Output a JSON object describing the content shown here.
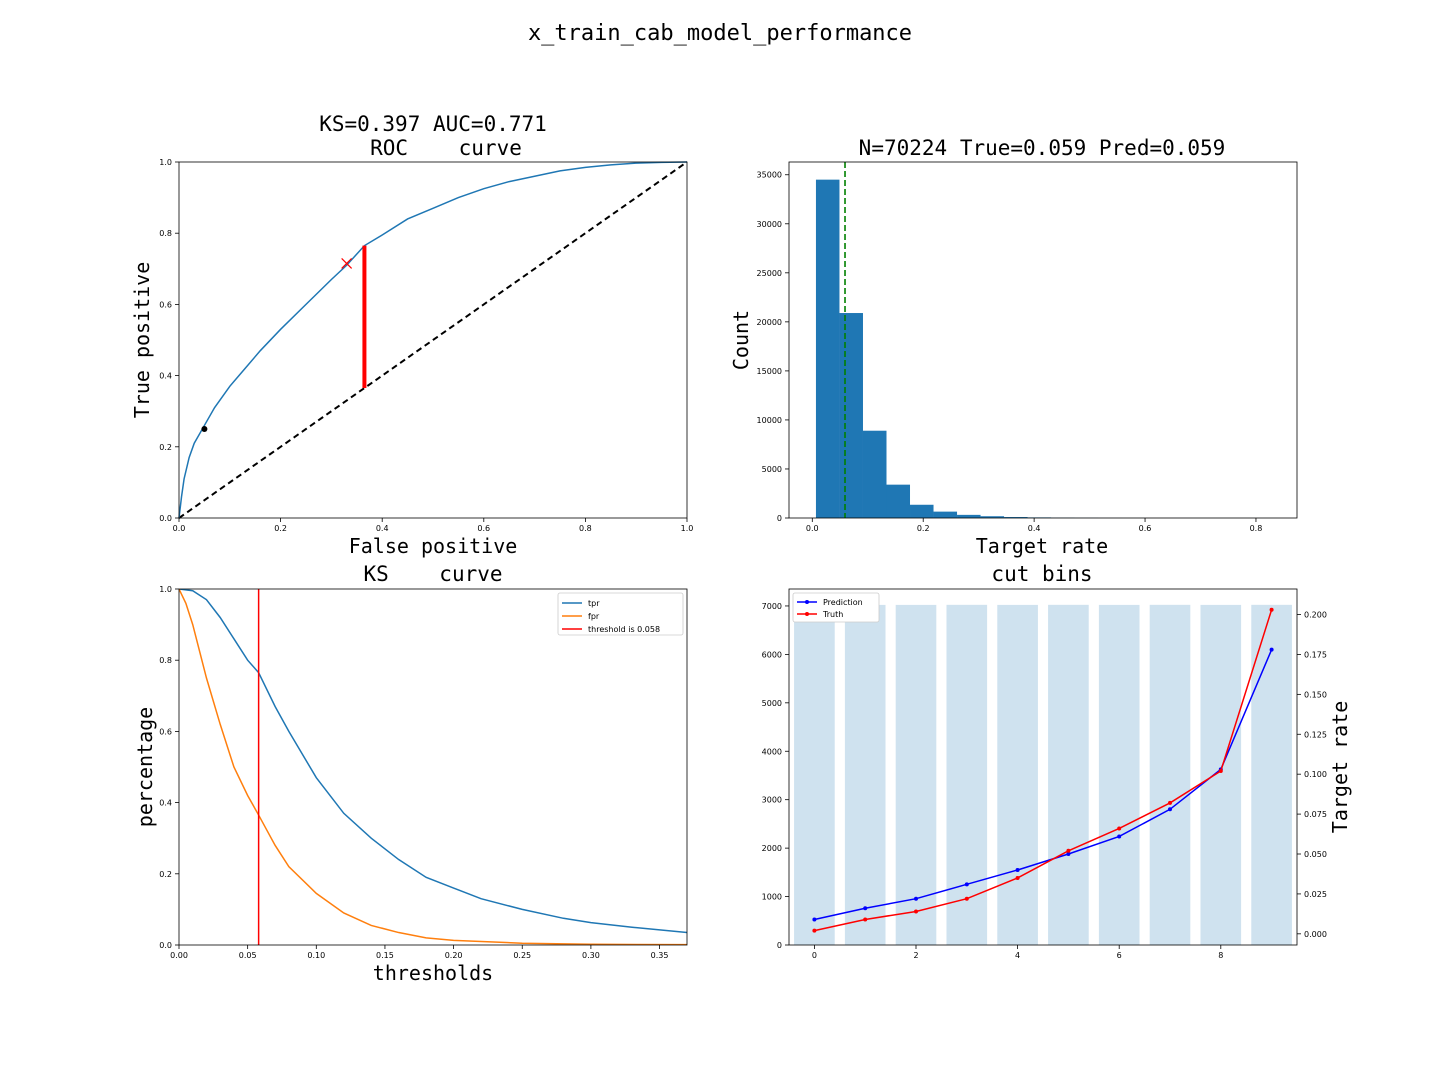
{
  "suptitle": "x_train_cab_model_performance",
  "chart_data": [
    {
      "type": "line",
      "id": "roc",
      "title_lines": [
        "KS=0.397 AUC=0.771",
        "ROC    curve"
      ],
      "xlabel": "False positive",
      "ylabel": "True positive",
      "xlim": [
        0,
        1
      ],
      "ylim": [
        0,
        1
      ],
      "xticks": [
        0,
        0.2,
        0.4,
        0.6,
        0.8,
        1.0
      ],
      "xtick_labels": [
        "0.0",
        "0.2",
        "0.4",
        "0.6",
        "0.8",
        "1.0"
      ],
      "yticks": [
        0,
        0.2,
        0.4,
        0.6,
        0.8,
        1.0
      ],
      "ytick_labels": [
        "0.0",
        "0.2",
        "0.4",
        "0.6",
        "0.8",
        "1.0"
      ],
      "series": [
        {
          "color": "#1f77b4",
          "x": [
            0,
            0.005,
            0.01,
            0.02,
            0.03,
            0.05,
            0.07,
            0.1,
            0.13,
            0.16,
            0.2,
            0.25,
            0.3,
            0.33,
            0.365,
            0.4,
            0.45,
            0.5,
            0.55,
            0.6,
            0.65,
            0.7,
            0.75,
            0.8,
            0.85,
            0.9,
            0.95,
            1.0
          ],
          "y": [
            0,
            0.06,
            0.11,
            0.17,
            0.21,
            0.26,
            0.31,
            0.37,
            0.42,
            0.47,
            0.53,
            0.6,
            0.67,
            0.71,
            0.765,
            0.795,
            0.84,
            0.87,
            0.9,
            0.925,
            0.945,
            0.96,
            0.975,
            0.985,
            0.992,
            0.997,
            0.999,
            1.0
          ]
        },
        {
          "color": "#000000",
          "dash": true,
          "x": [
            0,
            1
          ],
          "y": [
            0,
            1
          ]
        }
      ],
      "ks_segment": {
        "x": 0.365,
        "y_low": 0.365,
        "y_high": 0.765,
        "color": "#ff0000"
      },
      "cross_marker": {
        "x": 0.33,
        "y": 0.715,
        "color": "#ff0000"
      },
      "dot_marker": {
        "x": 0.05,
        "y": 0.25,
        "color": "#000000"
      }
    },
    {
      "type": "bar",
      "id": "hist",
      "title": "N=70224 True=0.059 Pred=0.059",
      "xlabel": "Target rate",
      "ylabel": "Count",
      "xlim": [
        -0.042,
        0.874
      ],
      "ylim": [
        0,
        36300
      ],
      "xticks": [
        0,
        0.2,
        0.4,
        0.6,
        0.8
      ],
      "xtick_labels": [
        "0.0",
        "0.2",
        "0.4",
        "0.6",
        "0.8"
      ],
      "yticks": [
        0,
        5000,
        10000,
        15000,
        20000,
        25000,
        30000,
        35000
      ],
      "ytick_labels": [
        "0",
        "5000",
        "10000",
        "15000",
        "20000",
        "25000",
        "30000",
        "35000"
      ],
      "bin_edges": [
        0.0066,
        0.049,
        0.0914,
        0.1338,
        0.1762,
        0.2186,
        0.261,
        0.3034,
        0.3458,
        0.3882,
        0.4306,
        0.473,
        0.5154,
        0.5578,
        0.6002,
        0.6426,
        0.685,
        0.7274,
        0.7698,
        0.8122,
        0.8402
      ],
      "counts": [
        34500,
        20900,
        8900,
        3400,
        1350,
        650,
        320,
        180,
        100,
        60,
        30,
        15,
        8,
        5,
        3,
        2,
        1,
        1,
        1,
        1
      ],
      "color": "#1f77b4",
      "vline": {
        "x": 0.059,
        "color": "#008000",
        "dash": true
      }
    },
    {
      "type": "line",
      "id": "ks",
      "title_lines": [
        "KS    curve"
      ],
      "xlabel": "thresholds",
      "ylabel": "percentage",
      "xlim": [
        0,
        0.37
      ],
      "ylim": [
        0,
        1
      ],
      "xticks": [
        0,
        0.05,
        0.1,
        0.15,
        0.2,
        0.25,
        0.3,
        0.35
      ],
      "xtick_labels": [
        "0.00",
        "0.05",
        "0.10",
        "0.15",
        "0.20",
        "0.25",
        "0.30",
        "0.35"
      ],
      "yticks": [
        0,
        0.2,
        0.4,
        0.6,
        0.8,
        1.0
      ],
      "ytick_labels": [
        "0.0",
        "0.2",
        "0.4",
        "0.6",
        "0.8",
        "1.0"
      ],
      "series": [
        {
          "name": "tpr",
          "color": "#1f77b4",
          "x": [
            0,
            0.01,
            0.02,
            0.03,
            0.04,
            0.05,
            0.058,
            0.07,
            0.08,
            0.1,
            0.12,
            0.14,
            0.16,
            0.18,
            0.2,
            0.22,
            0.25,
            0.28,
            0.3,
            0.33,
            0.37
          ],
          "y": [
            1.0,
            0.995,
            0.97,
            0.92,
            0.86,
            0.8,
            0.765,
            0.67,
            0.6,
            0.47,
            0.37,
            0.3,
            0.24,
            0.19,
            0.16,
            0.13,
            0.1,
            0.075,
            0.063,
            0.05,
            0.035
          ]
        },
        {
          "name": "fpr",
          "color": "#ff7f0e",
          "x": [
            0,
            0.005,
            0.01,
            0.02,
            0.03,
            0.04,
            0.05,
            0.058,
            0.07,
            0.08,
            0.1,
            0.12,
            0.14,
            0.16,
            0.18,
            0.2,
            0.25,
            0.3,
            0.37
          ],
          "y": [
            1.0,
            0.96,
            0.9,
            0.75,
            0.62,
            0.5,
            0.42,
            0.365,
            0.28,
            0.22,
            0.145,
            0.09,
            0.055,
            0.035,
            0.02,
            0.013,
            0.005,
            0.002,
            0.001
          ]
        }
      ],
      "threshold_line": {
        "name": "threshold is 0.058",
        "x": 0.058,
        "color": "#ff0000"
      },
      "legend": {
        "placement": "upper-right",
        "entries": [
          "tpr",
          "fpr",
          "threshold is 0.058"
        ],
        "colors": [
          "#1f77b4",
          "#ff7f0e",
          "#ff0000"
        ]
      }
    },
    {
      "type": "bar",
      "id": "cutbins",
      "title": "cut bins",
      "ylabel_right": "Target rate",
      "xlim": [
        -0.5,
        9.5
      ],
      "ylim": [
        0,
        7350
      ],
      "ylim_right": [
        -0.007,
        0.216
      ],
      "xticks": [
        0,
        2,
        4,
        6,
        8
      ],
      "xtick_labels": [
        "0",
        "2",
        "4",
        "6",
        "8"
      ],
      "yticks": [
        0,
        1000,
        2000,
        3000,
        4000,
        5000,
        6000,
        7000
      ],
      "ytick_labels": [
        "0",
        "1000",
        "2000",
        "3000",
        "4000",
        "5000",
        "6000",
        "7000"
      ],
      "yticks_right": [
        0,
        0.025,
        0.05,
        0.075,
        0.1,
        0.125,
        0.15,
        0.175,
        0.2
      ],
      "ytick_labels_right": [
        "0.000",
        "0.025",
        "0.050",
        "0.075",
        "0.100",
        "0.125",
        "0.150",
        "0.175",
        "0.200"
      ],
      "categories": [
        0,
        1,
        2,
        3,
        4,
        5,
        6,
        7,
        8,
        9
      ],
      "bar_values": [
        7022,
        7022,
        7022,
        7023,
        7022,
        7023,
        7022,
        7023,
        7022,
        7023
      ],
      "bar_color": "#cfe2ef",
      "series": [
        {
          "name": "Prediction",
          "color": "#0000ff",
          "values": [
            0.009,
            0.016,
            0.022,
            0.031,
            0.04,
            0.05,
            0.061,
            0.078,
            0.103,
            0.178
          ]
        },
        {
          "name": "Truth",
          "color": "#ff0000",
          "values": [
            0.002,
            0.009,
            0.014,
            0.022,
            0.035,
            0.052,
            0.066,
            0.082,
            0.102,
            0.203
          ]
        }
      ],
      "legend": {
        "placement": "upper-left",
        "entries": [
          "Prediction",
          "Truth"
        ],
        "colors": [
          "#0000ff",
          "#ff0000"
        ]
      }
    }
  ]
}
